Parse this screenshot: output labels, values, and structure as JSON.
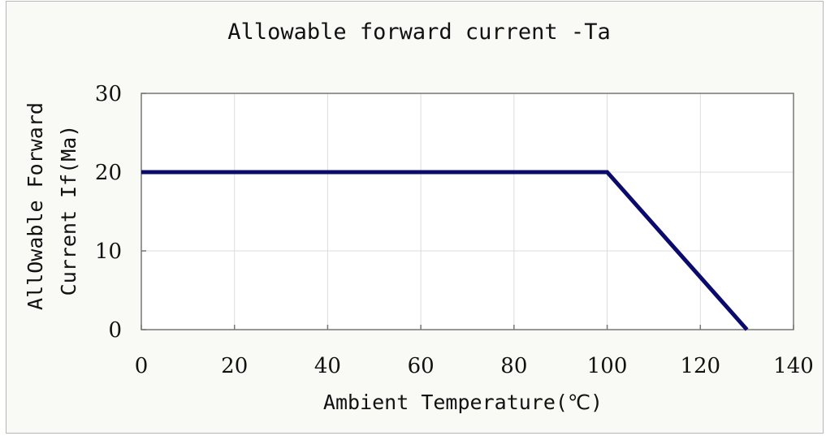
{
  "chart_data": {
    "type": "line",
    "title": "Allowable forward current -Ta",
    "xlabel": "Ambient Temperature(℃)",
    "ylabel_lines": [
      "AllOwable Forward",
      "Current If(Ma)"
    ],
    "xlim": [
      0,
      140
    ],
    "ylim": [
      0,
      30
    ],
    "xticks": [
      0,
      20,
      40,
      60,
      80,
      100,
      120,
      140
    ],
    "yticks": [
      0,
      10,
      20,
      30
    ],
    "grid": true,
    "series": [
      {
        "x": [
          0,
          100,
          130
        ],
        "y": [
          20,
          20,
          0
        ],
        "color": "#0b0b6e"
      }
    ]
  }
}
